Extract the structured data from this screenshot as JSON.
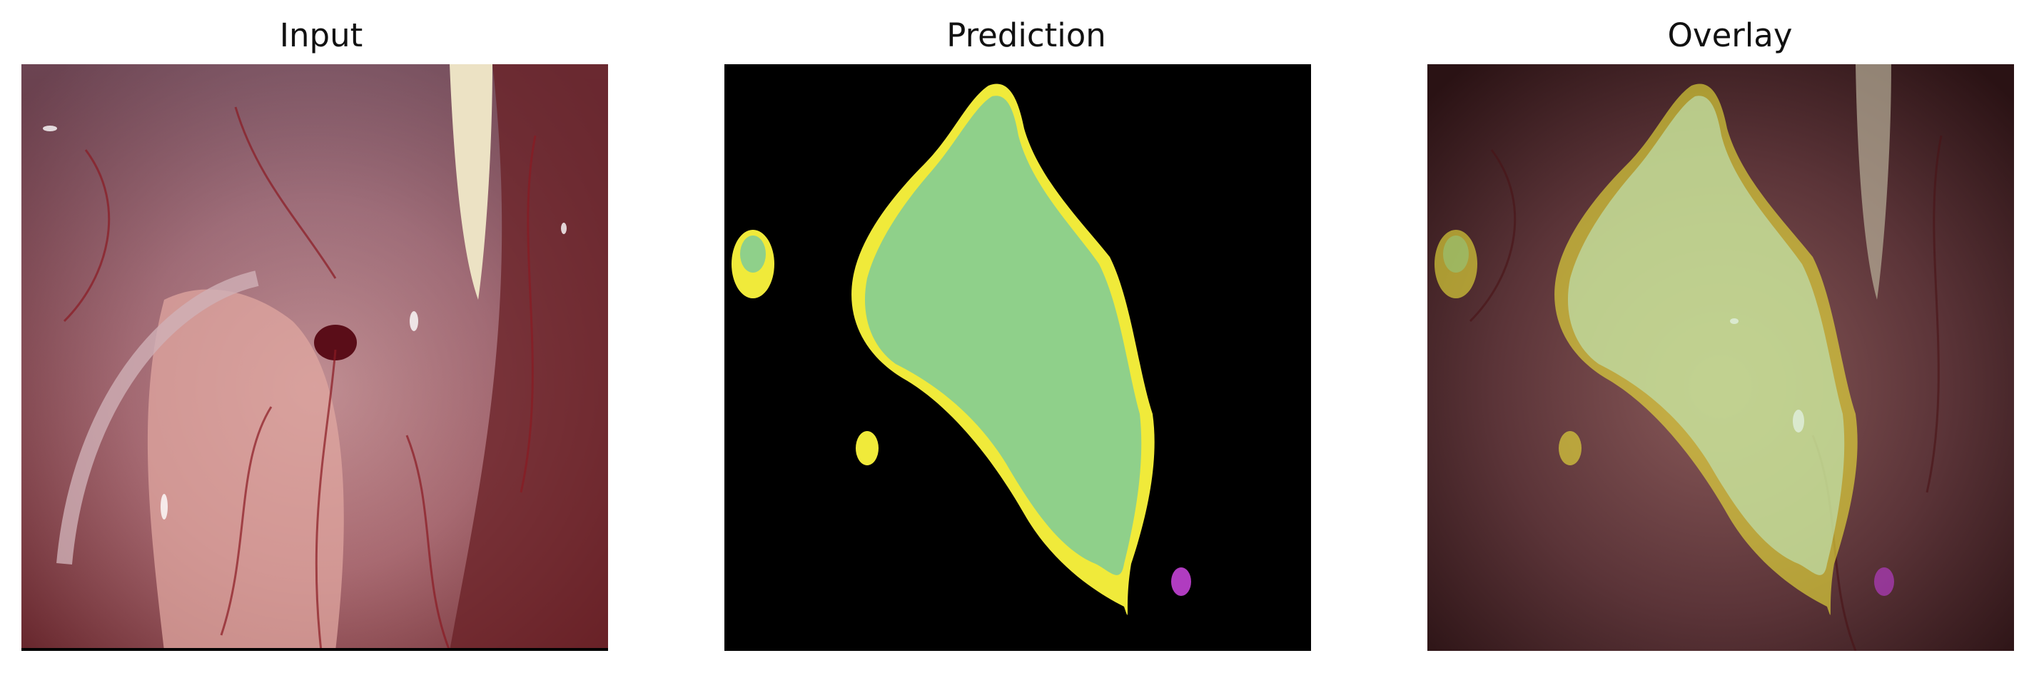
{
  "panels": {
    "input": {
      "title": "Input"
    },
    "prediction": {
      "title": "Prediction"
    },
    "overlay": {
      "title": "Overlay"
    }
  },
  "colors": {
    "background": "#000000",
    "class_green": "#8fd08a",
    "class_yellow": "#f0ea3a",
    "class_magenta": "#b03cc0"
  }
}
